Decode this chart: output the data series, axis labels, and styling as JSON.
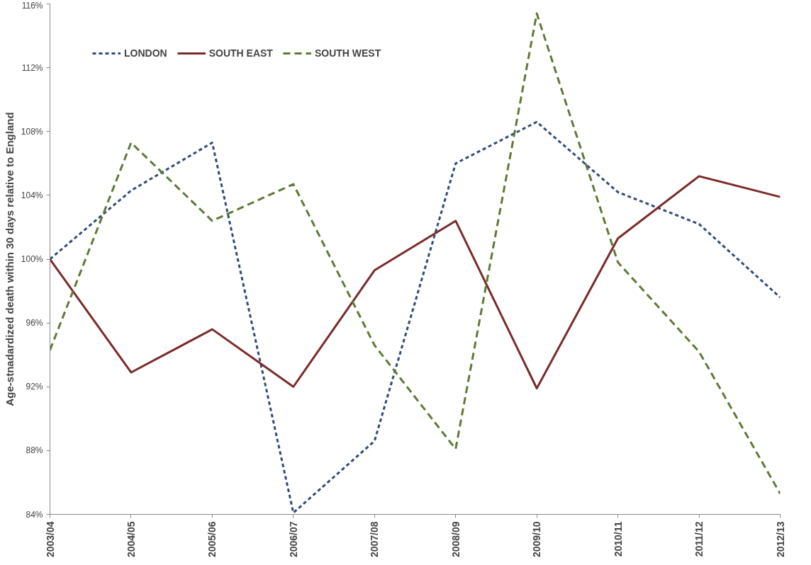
{
  "chart_data": {
    "type": "line",
    "ylabel": "Age-stnadardized death within 30 days relative to England",
    "categories": [
      "2003/04",
      "2004/05",
      "2005/06",
      "2006/07",
      "2007/08",
      "2008/09",
      "2009/10",
      "2010/11",
      "2011/12",
      "2012/13"
    ],
    "series": [
      {
        "name": "LONDON",
        "color": "#2f4b7c",
        "line_style": "dotted",
        "values": [
          100.0,
          104.3,
          107.3,
          84.1,
          88.6,
          106.0,
          108.6,
          104.2,
          102.2,
          97.6
        ]
      },
      {
        "name": "SOUTH EAST",
        "color": "#7b2a2a",
        "line_style": "solid",
        "values": [
          100.0,
          92.9,
          95.6,
          92.0,
          99.3,
          102.4,
          91.9,
          101.3,
          105.2,
          103.9
        ]
      },
      {
        "name": "SOUTH WEST",
        "color": "#5f7a35",
        "line_style": "dashed",
        "values": [
          94.3,
          107.3,
          102.4,
          104.7,
          94.6,
          88.1,
          115.4,
          99.8,
          94.2,
          85.3
        ]
      }
    ],
    "ylim": [
      84,
      116
    ],
    "yticks": [
      {
        "value": 84,
        "label": "84%"
      },
      {
        "value": 88,
        "label": "88%"
      },
      {
        "value": 92,
        "label": "92%"
      },
      {
        "value": 96,
        "label": "96%"
      },
      {
        "value": 100,
        "label": "100%"
      },
      {
        "value": 104,
        "label": "104%"
      },
      {
        "value": 108,
        "label": "108%"
      },
      {
        "value": 112,
        "label": "112%"
      },
      {
        "value": 116,
        "label": "116%"
      }
    ],
    "grid": false,
    "legend": "top left",
    "marker": "none"
  }
}
